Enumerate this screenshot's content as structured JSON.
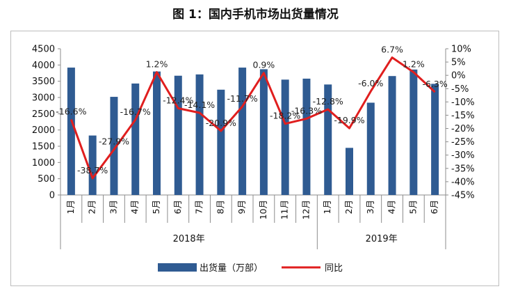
{
  "chart_data": {
    "type": "bar+line",
    "title": "图 1：国内手机市场出货量情况",
    "categories": [
      "1月",
      "2月",
      "3月",
      "4月",
      "5月",
      "6月",
      "7月",
      "8月",
      "9月",
      "10月",
      "11月",
      "12月",
      "1月",
      "2月",
      "3月",
      "4月",
      "5月",
      "6月"
    ],
    "groups": [
      {
        "label": "2018年",
        "count": 12
      },
      {
        "label": "2019年",
        "count": 6
      }
    ],
    "series": [
      {
        "name": "出货量（万部）",
        "type": "bar",
        "axis": "left",
        "color": "#2f5b92",
        "values": [
          3920,
          1830,
          3020,
          3430,
          3800,
          3670,
          3710,
          3240,
          3920,
          3870,
          3550,
          3580,
          3400,
          1450,
          2840,
          3660,
          3860,
          3420
        ]
      },
      {
        "name": "同比",
        "type": "line",
        "axis": "right",
        "color": "#e01e1e",
        "values": [
          -16.6,
          -38.7,
          -27.9,
          -16.7,
          1.2,
          -12.4,
          -14.1,
          -20.9,
          -11.7,
          0.9,
          -18.2,
          -16.3,
          -12.8,
          -19.9,
          -6.0,
          6.7,
          1.2,
          -6.3
        ],
        "labels": [
          "-16.6%",
          "-38.7%",
          "-27.9%",
          "-16.7%",
          "1.2%",
          "-12.4%",
          "-14.1%",
          "-20.9%",
          "-11.7%",
          "0.9%",
          "-18.2%",
          "-16.3%",
          "-12.8%",
          "-19.9%",
          "-6.0%",
          "6.7%",
          "1.2%",
          "-6.3%"
        ]
      }
    ],
    "y_left": {
      "min": 0,
      "max": 4500,
      "step": 500,
      "ticks": [
        "0",
        "500",
        "1000",
        "1500",
        "2000",
        "2500",
        "3000",
        "3500",
        "4000",
        "4500"
      ]
    },
    "y_right": {
      "min": -45,
      "max": 10,
      "step": 5,
      "ticks": [
        "10%",
        "5%",
        "0%",
        "-5%",
        "-10%",
        "-15%",
        "-20%",
        "-25%",
        "-30%",
        "-35%",
        "-40%",
        "-45%"
      ]
    },
    "grid": false,
    "legend_position": "bottom"
  }
}
